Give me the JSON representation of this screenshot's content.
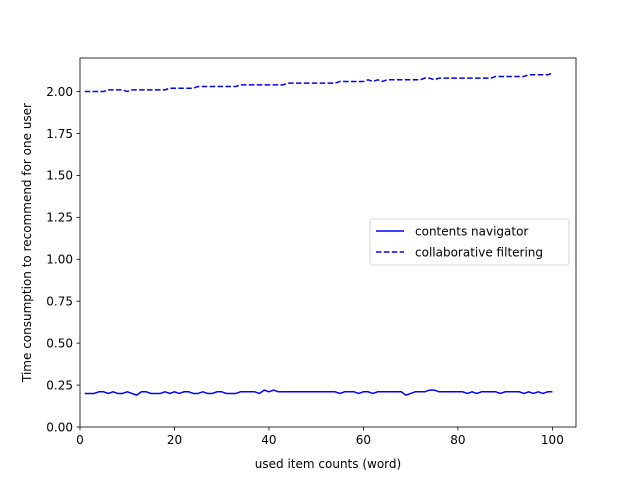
{
  "chart_data": {
    "type": "line",
    "title": "",
    "xlabel": "used item counts (word)",
    "ylabel": "Time consumption to recommend for one user",
    "xlim": [
      0,
      105
    ],
    "ylim": [
      0,
      2.2
    ],
    "xticks": [
      0,
      20,
      40,
      60,
      80,
      100
    ],
    "yticks": [
      0.0,
      0.25,
      0.5,
      0.75,
      1.0,
      1.25,
      1.5,
      1.75,
      2.0
    ],
    "xtick_labels": [
      "0",
      "20",
      "40",
      "60",
      "80",
      "100"
    ],
    "ytick_labels": [
      "0.00",
      "0.25",
      "0.50",
      "0.75",
      "1.00",
      "1.25",
      "1.50",
      "1.75",
      "2.00"
    ],
    "grid": false,
    "legend_position": "center-right",
    "color": "#0000ff",
    "x": [
      1,
      2,
      3,
      4,
      5,
      6,
      7,
      8,
      9,
      10,
      11,
      12,
      13,
      14,
      15,
      16,
      17,
      18,
      19,
      20,
      21,
      22,
      23,
      24,
      25,
      26,
      27,
      28,
      29,
      30,
      31,
      32,
      33,
      34,
      35,
      36,
      37,
      38,
      39,
      40,
      41,
      42,
      43,
      44,
      45,
      46,
      47,
      48,
      49,
      50,
      51,
      52,
      53,
      54,
      55,
      56,
      57,
      58,
      59,
      60,
      61,
      62,
      63,
      64,
      65,
      66,
      67,
      68,
      69,
      70,
      71,
      72,
      73,
      74,
      75,
      76,
      77,
      78,
      79,
      80,
      81,
      82,
      83,
      84,
      85,
      86,
      87,
      88,
      89,
      90,
      91,
      92,
      93,
      94,
      95,
      96,
      97,
      98,
      99,
      100
    ],
    "series": [
      {
        "name": "contents navigator",
        "style": "solid",
        "values": [
          0.2,
          0.2,
          0.2,
          0.21,
          0.21,
          0.2,
          0.21,
          0.2,
          0.2,
          0.21,
          0.2,
          0.19,
          0.21,
          0.21,
          0.2,
          0.2,
          0.2,
          0.21,
          0.2,
          0.21,
          0.2,
          0.21,
          0.21,
          0.2,
          0.2,
          0.21,
          0.2,
          0.2,
          0.21,
          0.21,
          0.2,
          0.2,
          0.2,
          0.21,
          0.21,
          0.21,
          0.21,
          0.2,
          0.22,
          0.21,
          0.22,
          0.21,
          0.21,
          0.21,
          0.21,
          0.21,
          0.21,
          0.21,
          0.21,
          0.21,
          0.21,
          0.21,
          0.21,
          0.21,
          0.2,
          0.21,
          0.21,
          0.21,
          0.2,
          0.21,
          0.21,
          0.2,
          0.21,
          0.21,
          0.21,
          0.21,
          0.21,
          0.21,
          0.19,
          0.2,
          0.21,
          0.21,
          0.21,
          0.22,
          0.22,
          0.21,
          0.21,
          0.21,
          0.21,
          0.21,
          0.21,
          0.2,
          0.21,
          0.2,
          0.21,
          0.21,
          0.21,
          0.21,
          0.2,
          0.21,
          0.21,
          0.21,
          0.21,
          0.2,
          0.21,
          0.2,
          0.21,
          0.2,
          0.21,
          0.21
        ]
      },
      {
        "name": "collaborative filtering",
        "style": "dashed",
        "values": [
          2.0,
          2.0,
          2.0,
          2.0,
          2.0,
          2.01,
          2.01,
          2.01,
          2.01,
          2.0,
          2.01,
          2.01,
          2.01,
          2.01,
          2.01,
          2.01,
          2.01,
          2.01,
          2.02,
          2.02,
          2.02,
          2.02,
          2.02,
          2.02,
          2.03,
          2.03,
          2.03,
          2.03,
          2.03,
          2.03,
          2.03,
          2.03,
          2.03,
          2.04,
          2.04,
          2.04,
          2.04,
          2.04,
          2.04,
          2.04,
          2.04,
          2.04,
          2.04,
          2.05,
          2.05,
          2.05,
          2.05,
          2.05,
          2.05,
          2.05,
          2.05,
          2.05,
          2.05,
          2.05,
          2.06,
          2.06,
          2.06,
          2.06,
          2.06,
          2.06,
          2.07,
          2.06,
          2.07,
          2.06,
          2.07,
          2.07,
          2.07,
          2.07,
          2.07,
          2.07,
          2.07,
          2.07,
          2.08,
          2.08,
          2.07,
          2.08,
          2.08,
          2.08,
          2.08,
          2.08,
          2.08,
          2.08,
          2.08,
          2.08,
          2.08,
          2.08,
          2.08,
          2.09,
          2.09,
          2.09,
          2.09,
          2.09,
          2.09,
          2.09,
          2.1,
          2.1,
          2.1,
          2.1,
          2.1,
          2.11
        ]
      }
    ]
  }
}
